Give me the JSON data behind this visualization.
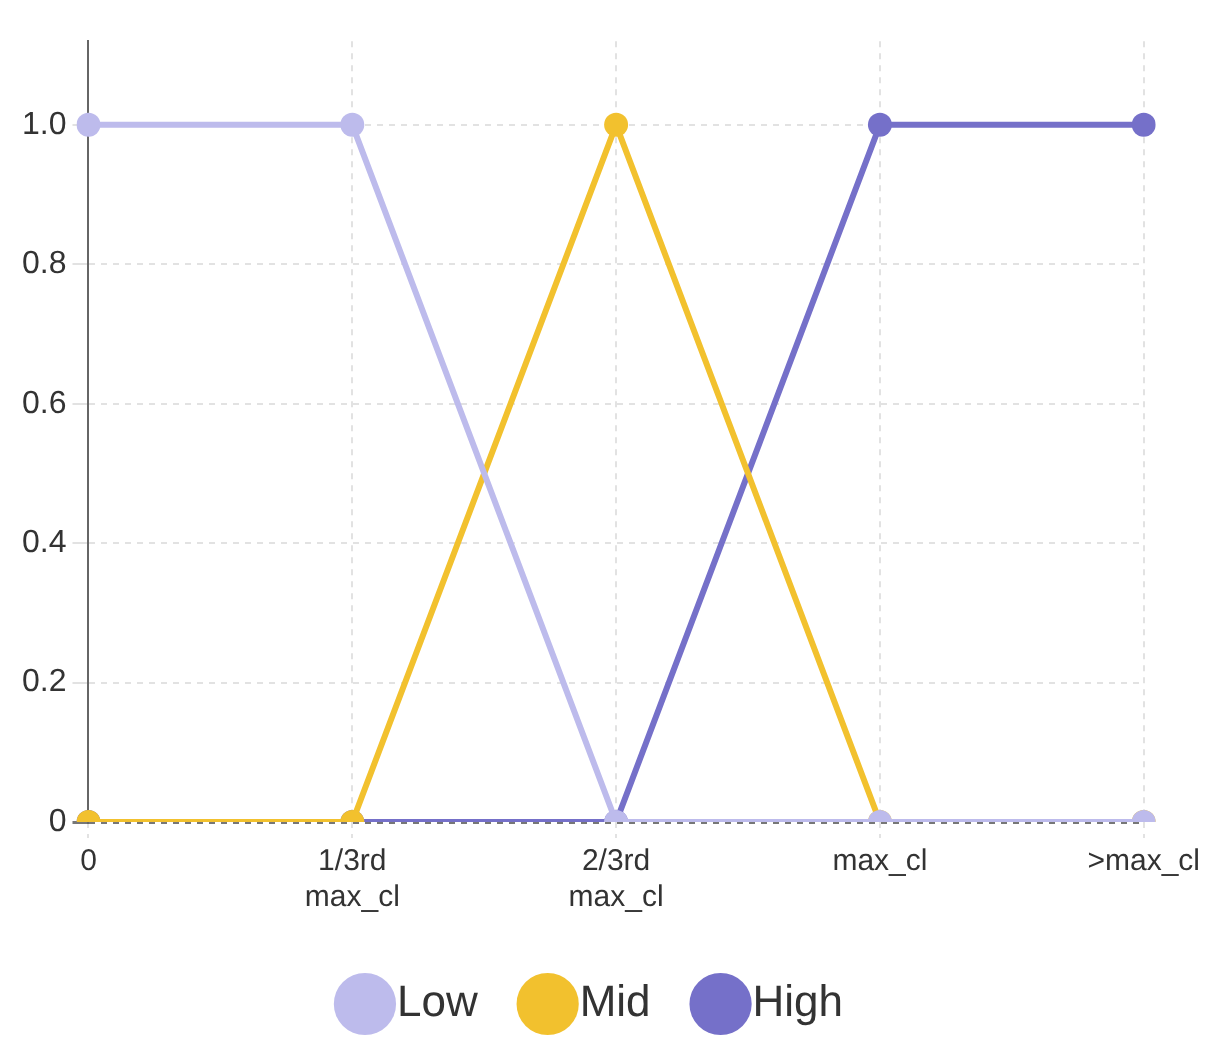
{
  "chart_data": {
    "type": "line",
    "categories": [
      "0",
      "1/3rd max_cl",
      "2/3rd max_cl",
      "max_cl",
      ">max_cl"
    ],
    "series": [
      {
        "name": "Low",
        "color": "#bdbbec",
        "values": [
          1,
          1,
          0,
          0,
          0
        ]
      },
      {
        "name": "Mid",
        "color": "#f2c12e",
        "values": [
          0,
          0,
          1,
          0,
          0
        ]
      },
      {
        "name": "High",
        "color": "#7570c9",
        "values": [
          0,
          0,
          0,
          1,
          1
        ]
      }
    ],
    "ylim": [
      0,
      1.12
    ],
    "yticks": [
      {
        "value": 0,
        "label": "0"
      },
      0.2,
      0.4,
      0.6,
      0.8,
      {
        "value": 1,
        "label": "1.0"
      }
    ],
    "grid": true,
    "legend": "bottom",
    "marker": "circle",
    "line_style": "solid"
  }
}
